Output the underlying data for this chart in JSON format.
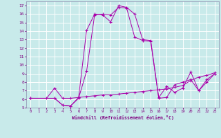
{
  "xlabel": "Windchill (Refroidissement éolien,°C)",
  "bg_color": "#c8eaea",
  "grid_color": "#ffffff",
  "line_color": "#aa00aa",
  "xlim": [
    -0.5,
    23.5
  ],
  "ylim": [
    5,
    17.5
  ],
  "xticks": [
    0,
    1,
    2,
    3,
    4,
    5,
    6,
    7,
    8,
    9,
    10,
    11,
    12,
    13,
    14,
    15,
    16,
    17,
    18,
    19,
    20,
    21,
    22,
    23
  ],
  "yticks": [
    5,
    6,
    7,
    8,
    9,
    10,
    11,
    12,
    13,
    14,
    15,
    16,
    17
  ],
  "series1_x": [
    0,
    2,
    3,
    4,
    5,
    6,
    7,
    8,
    9,
    10,
    11,
    12,
    13,
    14,
    15,
    16,
    17,
    18,
    19,
    20,
    21,
    22,
    23
  ],
  "series1_y": [
    6.1,
    6.1,
    7.3,
    6.1,
    6.1,
    6.2,
    6.3,
    6.4,
    6.5,
    6.5,
    6.6,
    6.7,
    6.8,
    6.9,
    7.0,
    7.1,
    7.2,
    7.4,
    7.6,
    8.2,
    8.6,
    8.8,
    9.1
  ],
  "series2_x": [
    0,
    3,
    4,
    5,
    6,
    7,
    8,
    9,
    10,
    11,
    12,
    13,
    14,
    15,
    16,
    17,
    18,
    19,
    20,
    21,
    22,
    23
  ],
  "series2_y": [
    6.1,
    6.1,
    5.3,
    5.2,
    6.1,
    9.3,
    15.9,
    16.0,
    15.9,
    16.8,
    16.7,
    13.3,
    12.9,
    12.8,
    6.1,
    6.2,
    7.7,
    8.0,
    8.3,
    7.0,
    8.0,
    9.0
  ],
  "series3_x": [
    0,
    3,
    4,
    5,
    6,
    7,
    8,
    9,
    10,
    11,
    12,
    13,
    14,
    15,
    16,
    17,
    18,
    19,
    20,
    21,
    22,
    23
  ],
  "series3_y": [
    6.1,
    6.1,
    5.3,
    5.2,
    6.2,
    14.1,
    16.0,
    15.9,
    15.1,
    17.0,
    16.8,
    16.0,
    13.0,
    12.9,
    6.2,
    7.5,
    6.8,
    7.3,
    9.2,
    7.0,
    8.3,
    9.0
  ]
}
